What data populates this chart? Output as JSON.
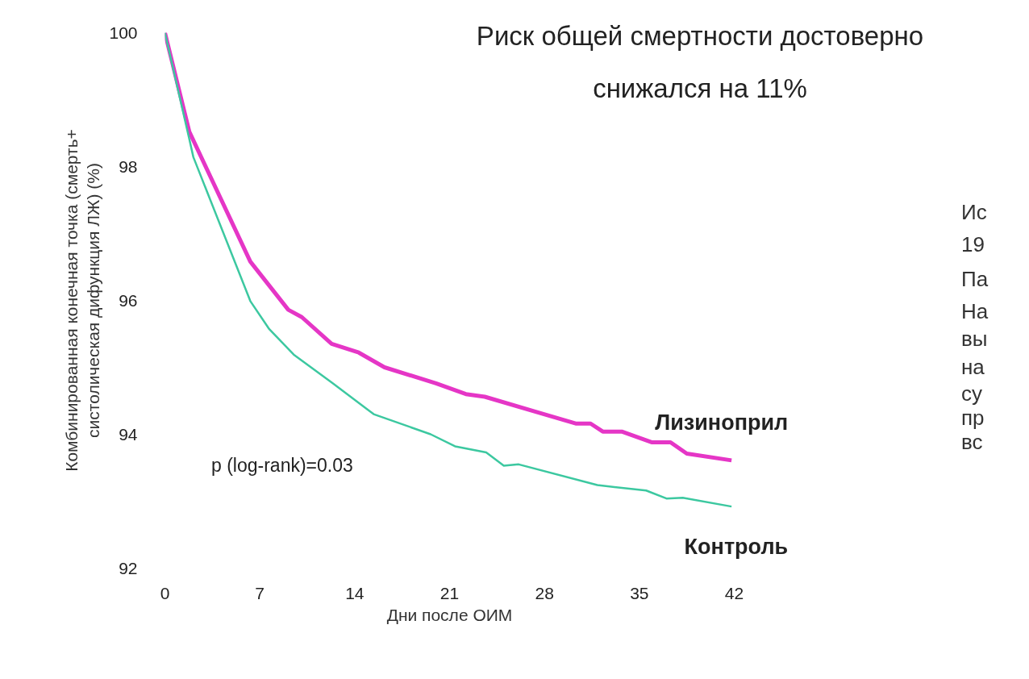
{
  "chart_data": {
    "type": "line",
    "title": "Риск общей смертности достоверно\nснижался на 11%",
    "xlabel": "Дни после ОИМ",
    "ylabel": "Комбинированная конечная точка (смерть+\nсистолическая дифункция ЛЖ) (%)",
    "annotations": [
      "p (log-rank)=0.03",
      "Ис",
      "19",
      "Па",
      "На",
      "вы",
      "на",
      "су",
      "пр",
      "вс"
    ],
    "series": [
      {
        "name": "Лизиноприл",
        "color": "#e536c6",
        "x": [
          0,
          1.8,
          6.3,
          9.1,
          10.1,
          12.3,
          14.3,
          16.2,
          20,
          22.2,
          23.6,
          30.3,
          31.4,
          32.3,
          33.7,
          35.9,
          37.3,
          38.5,
          41.8
        ],
        "values": [
          100,
          98.52,
          96.58,
          95.86,
          95.75,
          95.35,
          95.22,
          95.0,
          94.76,
          94.6,
          94.56,
          94.16,
          94.16,
          94.04,
          94.04,
          93.88,
          93.88,
          93.71,
          93.61
        ]
      },
      {
        "name": "Контроль",
        "color": "#3cc8a0",
        "x": [
          0,
          1.8,
          2.1,
          6.3,
          7.7,
          9.5,
          12.4,
          15.4,
          19.6,
          21.4,
          23.7,
          25.0,
          26.1,
          31.9,
          35.5,
          37.0,
          38.2,
          41.8
        ],
        "values": [
          100,
          98.41,
          98.14,
          95.99,
          95.57,
          95.19,
          94.76,
          94.3,
          94.0,
          93.82,
          93.73,
          93.53,
          93.55,
          93.24,
          93.16,
          93.04,
          93.05,
          92.92
        ]
      }
    ],
    "xlim": [
      0,
      42
    ],
    "xticks": [
      0,
      7,
      14,
      21,
      28,
      35,
      42
    ],
    "ylim": [
      92,
      100
    ],
    "yticks": [
      92,
      94,
      96,
      98,
      100
    ],
    "grid": false,
    "legend": false,
    "marker": "none",
    "line_style": "solid"
  }
}
